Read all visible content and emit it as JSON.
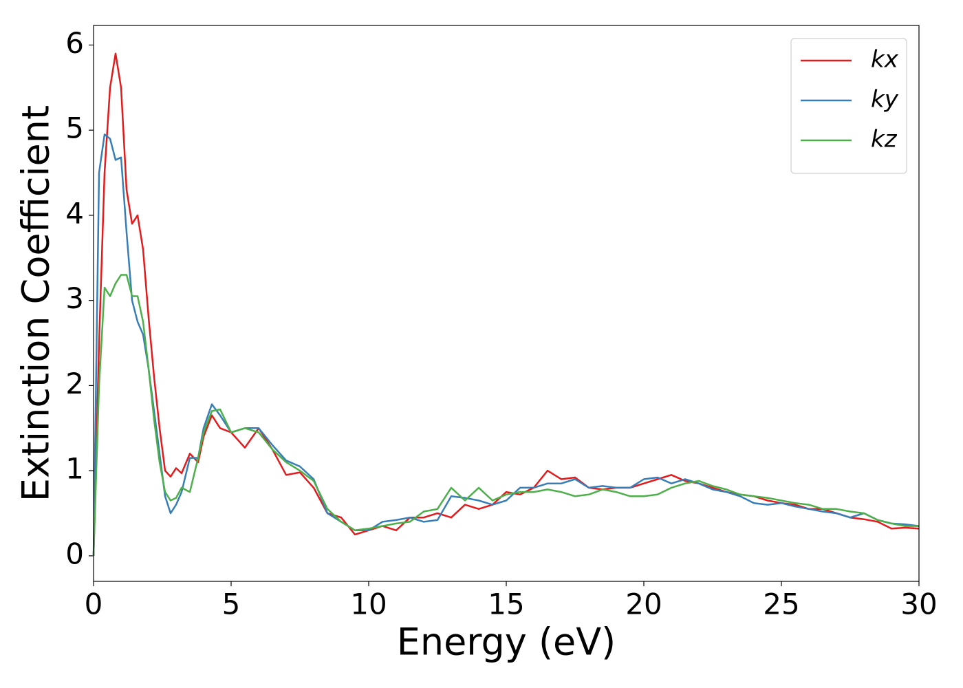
{
  "chart_data": {
    "type": "line",
    "xlabel": "Energy (eV)",
    "ylabel": "Extinction Coefficient",
    "x": [
      0,
      0.2,
      0.4,
      0.6,
      0.8,
      1.0,
      1.2,
      1.4,
      1.6,
      1.8,
      2.0,
      2.2,
      2.4,
      2.6,
      2.8,
      3.0,
      3.2,
      3.5,
      3.8,
      4.0,
      4.3,
      4.6,
      5.0,
      5.5,
      6.0,
      6.5,
      7.0,
      7.5,
      8.0,
      8.5,
      9.0,
      9.5,
      10,
      10.5,
      11,
      11.5,
      12,
      12.5,
      13,
      13.5,
      14,
      14.5,
      15,
      15.5,
      16,
      16.5,
      17,
      17.5,
      18,
      18.5,
      19,
      19.5,
      20,
      20.5,
      21,
      21.5,
      22,
      22.5,
      23,
      23.5,
      24,
      24.5,
      25,
      25.5,
      26,
      26.5,
      27,
      27.5,
      28,
      28.5,
      29,
      29.5,
      30
    ],
    "series": [
      {
        "name": "kx",
        "color": "#e41a1c",
        "values": [
          0,
          2.5,
          4.5,
          5.5,
          5.9,
          5.5,
          4.3,
          3.9,
          4.0,
          3.6,
          2.8,
          2.1,
          1.5,
          1.0,
          0.93,
          1.03,
          0.97,
          1.2,
          1.1,
          1.4,
          1.65,
          1.5,
          1.45,
          1.27,
          1.5,
          1.25,
          0.95,
          0.98,
          0.8,
          0.5,
          0.45,
          0.25,
          0.3,
          0.35,
          0.3,
          0.45,
          0.45,
          0.5,
          0.45,
          0.6,
          0.55,
          0.6,
          0.75,
          0.72,
          0.8,
          1.0,
          0.9,
          0.92,
          0.8,
          0.78,
          0.8,
          0.8,
          0.85,
          0.9,
          0.95,
          0.88,
          0.85,
          0.8,
          0.75,
          0.72,
          0.7,
          0.65,
          0.62,
          0.6,
          0.55,
          0.55,
          0.5,
          0.45,
          0.43,
          0.4,
          0.32,
          0.33,
          0.32
        ]
      },
      {
        "name": "ky",
        "color": "#377eb8",
        "values": [
          0,
          4.5,
          4.95,
          4.9,
          4.65,
          4.68,
          3.8,
          3.0,
          2.75,
          2.6,
          2.2,
          1.7,
          1.2,
          0.7,
          0.5,
          0.6,
          0.75,
          1.15,
          1.15,
          1.5,
          1.78,
          1.65,
          1.45,
          1.5,
          1.5,
          1.3,
          1.12,
          1.05,
          0.9,
          0.5,
          0.4,
          0.3,
          0.3,
          0.4,
          0.42,
          0.45,
          0.4,
          0.42,
          0.7,
          0.68,
          0.65,
          0.6,
          0.65,
          0.8,
          0.8,
          0.85,
          0.85,
          0.9,
          0.8,
          0.82,
          0.8,
          0.8,
          0.9,
          0.92,
          0.85,
          0.9,
          0.85,
          0.78,
          0.75,
          0.7,
          0.62,
          0.6,
          0.62,
          0.58,
          0.55,
          0.52,
          0.5,
          0.45,
          0.5,
          0.42,
          0.38,
          0.37,
          0.35
        ]
      },
      {
        "name": "kz",
        "color": "#4daf4a",
        "values": [
          0,
          2.0,
          3.15,
          3.05,
          3.2,
          3.3,
          3.3,
          3.05,
          3.05,
          2.75,
          2.2,
          1.6,
          1.1,
          0.75,
          0.65,
          0.68,
          0.8,
          0.75,
          1.15,
          1.45,
          1.7,
          1.72,
          1.45,
          1.5,
          1.45,
          1.25,
          1.1,
          1.0,
          0.88,
          0.55,
          0.4,
          0.3,
          0.32,
          0.35,
          0.38,
          0.4,
          0.52,
          0.55,
          0.8,
          0.65,
          0.8,
          0.65,
          0.72,
          0.75,
          0.75,
          0.78,
          0.75,
          0.7,
          0.72,
          0.78,
          0.75,
          0.7,
          0.7,
          0.72,
          0.8,
          0.85,
          0.88,
          0.82,
          0.78,
          0.72,
          0.7,
          0.68,
          0.65,
          0.62,
          0.6,
          0.55,
          0.55,
          0.52,
          0.5,
          0.42,
          0.38,
          0.35,
          0.35
        ]
      }
    ],
    "xlim": [
      0,
      30
    ],
    "xticks": [
      0,
      5,
      10,
      15,
      20,
      25,
      30
    ],
    "ylim": [
      -0.3,
      6.23
    ],
    "yticks": [
      0,
      1,
      2,
      3,
      4,
      5,
      6
    ],
    "legend": "upper right"
  }
}
